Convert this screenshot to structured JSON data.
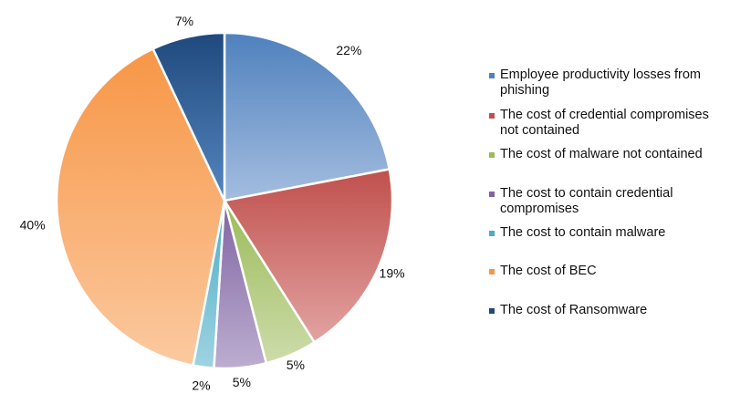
{
  "chart_data": {
    "type": "pie",
    "title": "",
    "start_angle_deg": 0,
    "direction": "clockwise",
    "legend_position": "right",
    "slices": [
      {
        "label": "Employee productivity losses from phishing",
        "value": 22,
        "data_label": "22%",
        "color": "#4f81bd",
        "light": "#a4bde0"
      },
      {
        "label": "The cost of credential compromises not contained",
        "value": 19,
        "data_label": "19%",
        "color": "#c0504d",
        "light": "#e2a3a1"
      },
      {
        "label": "The cost of malware not contained",
        "value": 5,
        "data_label": "5%",
        "color": "#9bbb59",
        "light": "#cddcaa"
      },
      {
        "label": "The cost to contain credential compromises",
        "value": 5,
        "data_label": "5%",
        "color": "#8064a2",
        "light": "#bcadd0"
      },
      {
        "label": "The cost to contain malware",
        "value": 2,
        "data_label": "2%",
        "color": "#4bacc6",
        "light": "#9fd3e2"
      },
      {
        "label": "The cost of BEC",
        "value": 40,
        "data_label": "40%",
        "color": "#f79646",
        "light": "#fbc99f"
      },
      {
        "label": "The cost of Ransomware",
        "value": 7,
        "data_label": "7%",
        "color": "#1f497d",
        "light": "#5586c0"
      }
    ]
  }
}
